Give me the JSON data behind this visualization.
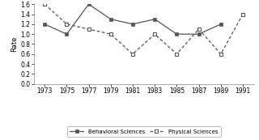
{
  "years": [
    1973,
    1975,
    1977,
    1979,
    1981,
    1983,
    1985,
    1987,
    1989,
    1991
  ],
  "behavioral": [
    1.2,
    1.0,
    1.6,
    1.3,
    1.2,
    1.3,
    1.0,
    1.0,
    1.2,
    null
  ],
  "physical": [
    1.6,
    1.2,
    1.1,
    1.0,
    0.6,
    1.0,
    0.6,
    1.1,
    0.6,
    1.4
  ],
  "ylim": [
    0,
    1.6
  ],
  "yticks": [
    0,
    0.2,
    0.4,
    0.6,
    0.8,
    1.0,
    1.2,
    1.4,
    1.6
  ],
  "ylabel": "Rate",
  "behavioral_label": "Behavioral Sciences",
  "physical_label": "Physical Sciences",
  "line_color": "#555555",
  "background_color": "#ffffff"
}
